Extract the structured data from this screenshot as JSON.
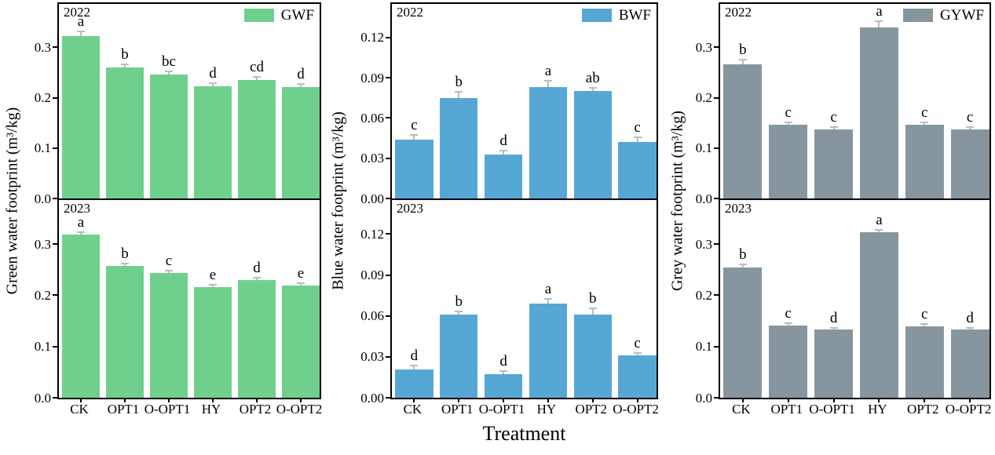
{
  "figure": {
    "xlabel": "Treatment",
    "background": "#ffffff",
    "axis_color": "#000000",
    "text_color": "#000000",
    "error_bar_color": "#b9bdbb",
    "legend_position": "top-right inside panel",
    "grid": "off"
  },
  "chart_data": [
    {
      "type": "bar",
      "id": "green-water-footprint",
      "legend": "GWF",
      "bar_color": "#6fd08d",
      "ylabel": "Green water footprint (m³/kg)",
      "xlabel": "Treatment",
      "categories": [
        "CK",
        "OPT1",
        "O-OPT1",
        "HY",
        "OPT2",
        "O-OPT2"
      ],
      "ylim": [
        0,
        0.386
      ],
      "yticks": [
        0.0,
        0.1,
        0.2,
        0.3
      ],
      "ytick_labels": [
        "0.0",
        "0.1",
        "0.2",
        "0.3"
      ],
      "panels": [
        {
          "year": "2022",
          "values": [
            0.322,
            0.26,
            0.246,
            0.222,
            0.235,
            0.221
          ],
          "errors": [
            0.008,
            0.005,
            0.004,
            0.005,
            0.004,
            0.004
          ],
          "letters": [
            "a",
            "b",
            "bc",
            "d",
            "cd",
            "d"
          ]
        },
        {
          "year": "2023",
          "values": [
            0.319,
            0.258,
            0.243,
            0.216,
            0.23,
            0.219
          ],
          "errors": [
            0.003,
            0.003,
            0.003,
            0.003,
            0.003,
            0.003
          ],
          "letters": [
            "a",
            "b",
            "c",
            "e",
            "d",
            "e"
          ]
        }
      ]
    },
    {
      "type": "bar",
      "id": "blue-water-footprint",
      "legend": "BWF",
      "bar_color": "#57a7d5",
      "ylabel": "Blue water footprint (m³/kg)",
      "xlabel": "Treatment",
      "categories": [
        "CK",
        "OPT1",
        "O-OPT1",
        "HY",
        "OPT2",
        "O-OPT2"
      ],
      "ylim": [
        0,
        0.145
      ],
      "yticks": [
        0.0,
        0.03,
        0.06,
        0.09,
        0.12
      ],
      "ytick_labels": [
        "0.00",
        "0.03",
        "0.06",
        "0.09",
        "0.12"
      ],
      "panels": [
        {
          "year": "2022",
          "values": [
            0.044,
            0.075,
            0.033,
            0.083,
            0.08,
            0.042
          ],
          "errors": [
            0.003,
            0.004,
            0.002,
            0.004,
            0.002,
            0.003
          ],
          "letters": [
            "c",
            "b",
            "d",
            "a",
            "ab",
            "c"
          ]
        },
        {
          "year": "2023",
          "values": [
            0.021,
            0.061,
            0.017,
            0.069,
            0.061,
            0.031
          ],
          "errors": [
            0.002,
            0.002,
            0.002,
            0.003,
            0.004,
            0.001
          ],
          "letters": [
            "d",
            "b",
            "d",
            "a",
            "b",
            "c"
          ]
        }
      ]
    },
    {
      "type": "bar",
      "id": "grey-water-footprint",
      "legend": "GYWF",
      "bar_color": "#87969e",
      "ylabel": "Grey water footprint (m³/kg)",
      "xlabel": "Treatment",
      "categories": [
        "CK",
        "OPT1",
        "O-OPT1",
        "HY",
        "OPT2",
        "O-OPT2"
      ],
      "ylim": [
        0,
        0.386
      ],
      "yticks": [
        0.0,
        0.1,
        0.2,
        0.3
      ],
      "ytick_labels": [
        "0.0",
        "0.1",
        "0.2",
        "0.3"
      ],
      "panels": [
        {
          "year": "2022",
          "values": [
            0.266,
            0.146,
            0.137,
            0.34,
            0.146,
            0.137
          ],
          "errors": [
            0.008,
            0.004,
            0.003,
            0.01,
            0.004,
            0.003
          ],
          "letters": [
            "b",
            "c",
            "c",
            "a",
            "c",
            "c"
          ]
        },
        {
          "year": "2023",
          "values": [
            0.254,
            0.141,
            0.133,
            0.323,
            0.14,
            0.133
          ],
          "errors": [
            0.005,
            0.003,
            0.002,
            0.004,
            0.003,
            0.002
          ],
          "letters": [
            "b",
            "c",
            "d",
            "a",
            "c",
            "d"
          ]
        }
      ]
    }
  ]
}
